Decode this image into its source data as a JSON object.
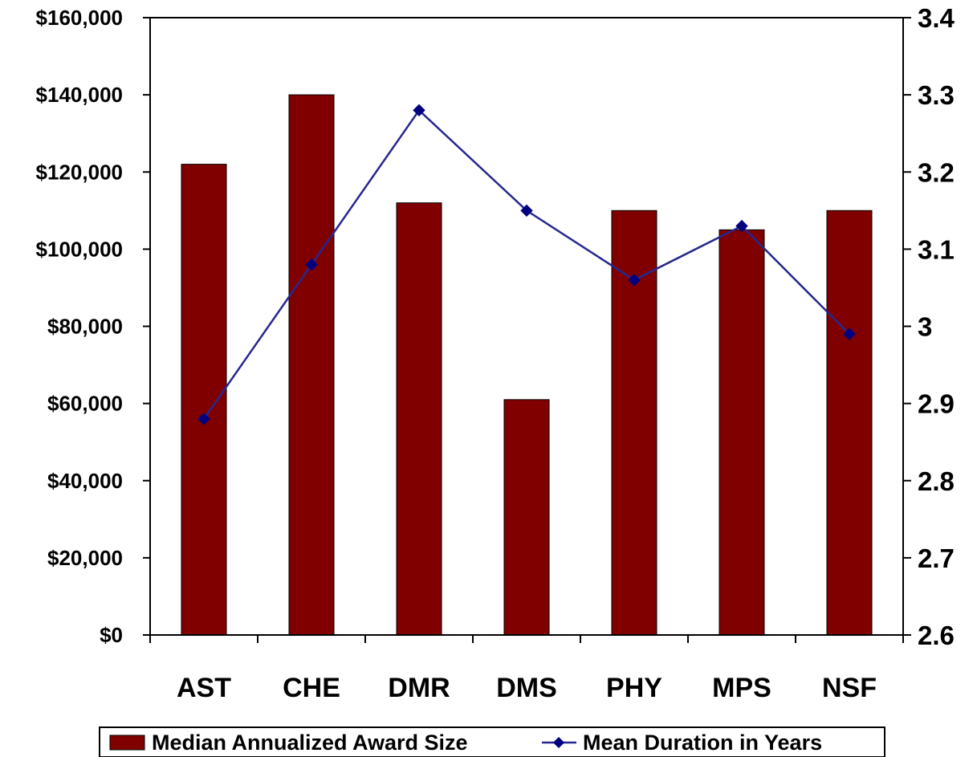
{
  "chart_data": {
    "type": "bar",
    "categories": [
      "AST",
      "CHE",
      "DMR",
      "DMS",
      "PHY",
      "MPS",
      "NSF"
    ],
    "series": [
      {
        "name": "Median Annualized Award Size",
        "type": "bar",
        "axis": "left",
        "color": "#800000",
        "values": [
          122000,
          140000,
          112000,
          61000,
          110000,
          105000,
          110000
        ]
      },
      {
        "name": "Mean Duration in Years",
        "type": "line",
        "axis": "right",
        "color": "#000080",
        "marker": "diamond",
        "values": [
          2.88,
          3.08,
          3.28,
          3.15,
          3.06,
          3.13,
          2.99
        ]
      }
    ],
    "y_left": {
      "ylim": [
        0,
        160000
      ],
      "ticks": [
        0,
        20000,
        40000,
        60000,
        80000,
        100000,
        120000,
        140000,
        160000
      ],
      "tick_labels": [
        "$0",
        "$20,000",
        "$40,000",
        "$60,000",
        "$80,000",
        "$100,000",
        "$120,000",
        "$140,000",
        "$160,000"
      ]
    },
    "y_right": {
      "ylim": [
        2.6,
        3.4
      ],
      "ticks": [
        2.6,
        2.7,
        2.8,
        2.9,
        3.0,
        3.1,
        3.2,
        3.3,
        3.4
      ],
      "tick_labels": [
        "2.6",
        "2.7",
        "2.8",
        "2.9",
        "3",
        "3.1",
        "3.2",
        "3.3",
        "3.4"
      ]
    },
    "title": "",
    "xlabel": "",
    "grid": false,
    "legend": "bottom"
  }
}
